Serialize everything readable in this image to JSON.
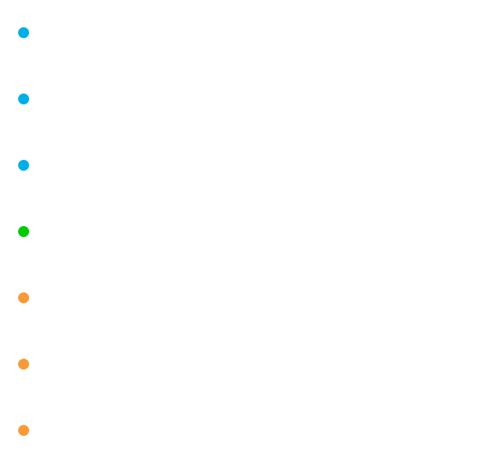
{
  "status_dots": [
    {
      "status": "info",
      "color": "#00aee8"
    },
    {
      "status": "info",
      "color": "#00aee8"
    },
    {
      "status": "info",
      "color": "#00aee8"
    },
    {
      "status": "ok",
      "color": "#00cc00"
    },
    {
      "status": "warning",
      "color": "#f79a35"
    },
    {
      "status": "warning",
      "color": "#f79a35"
    },
    {
      "status": "warning",
      "color": "#f79a35"
    }
  ]
}
